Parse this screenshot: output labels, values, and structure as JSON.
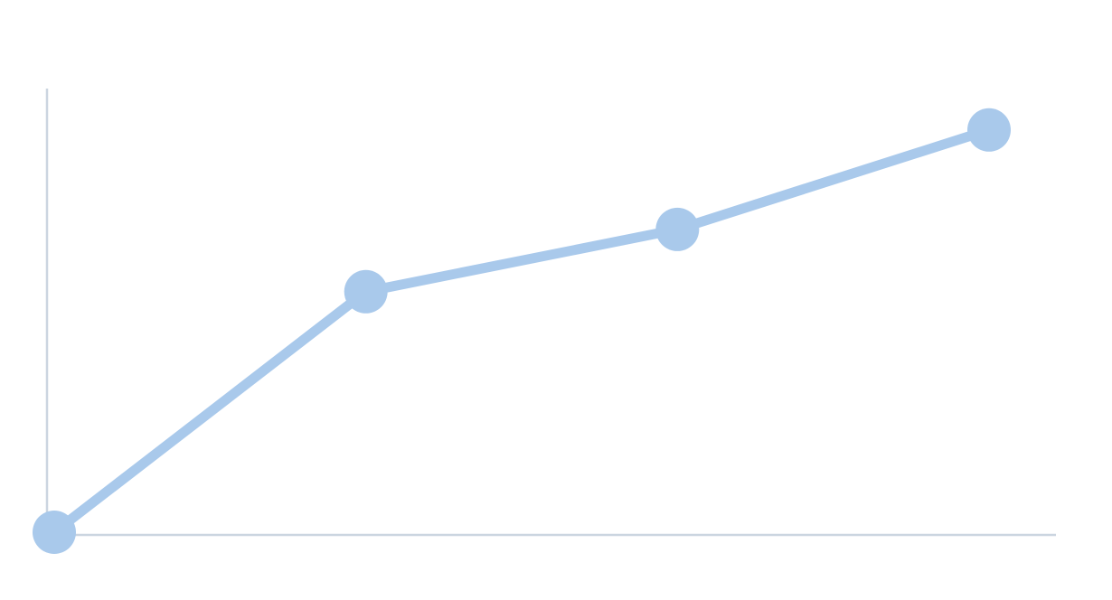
{
  "chart_data": {
    "type": "line",
    "x": [
      0,
      1,
      2,
      3
    ],
    "series": [
      {
        "values": [
          0,
          58,
          73,
          97
        ]
      }
    ],
    "title": "",
    "xlabel": "",
    "ylabel": "",
    "xlim": [
      0,
      3.2
    ],
    "ylim": [
      0,
      100
    ],
    "grid": false,
    "legend": "none",
    "colors": {
      "series": "#a9c9eb",
      "axis": "#cbd5e0",
      "background": "#ffffff"
    }
  }
}
